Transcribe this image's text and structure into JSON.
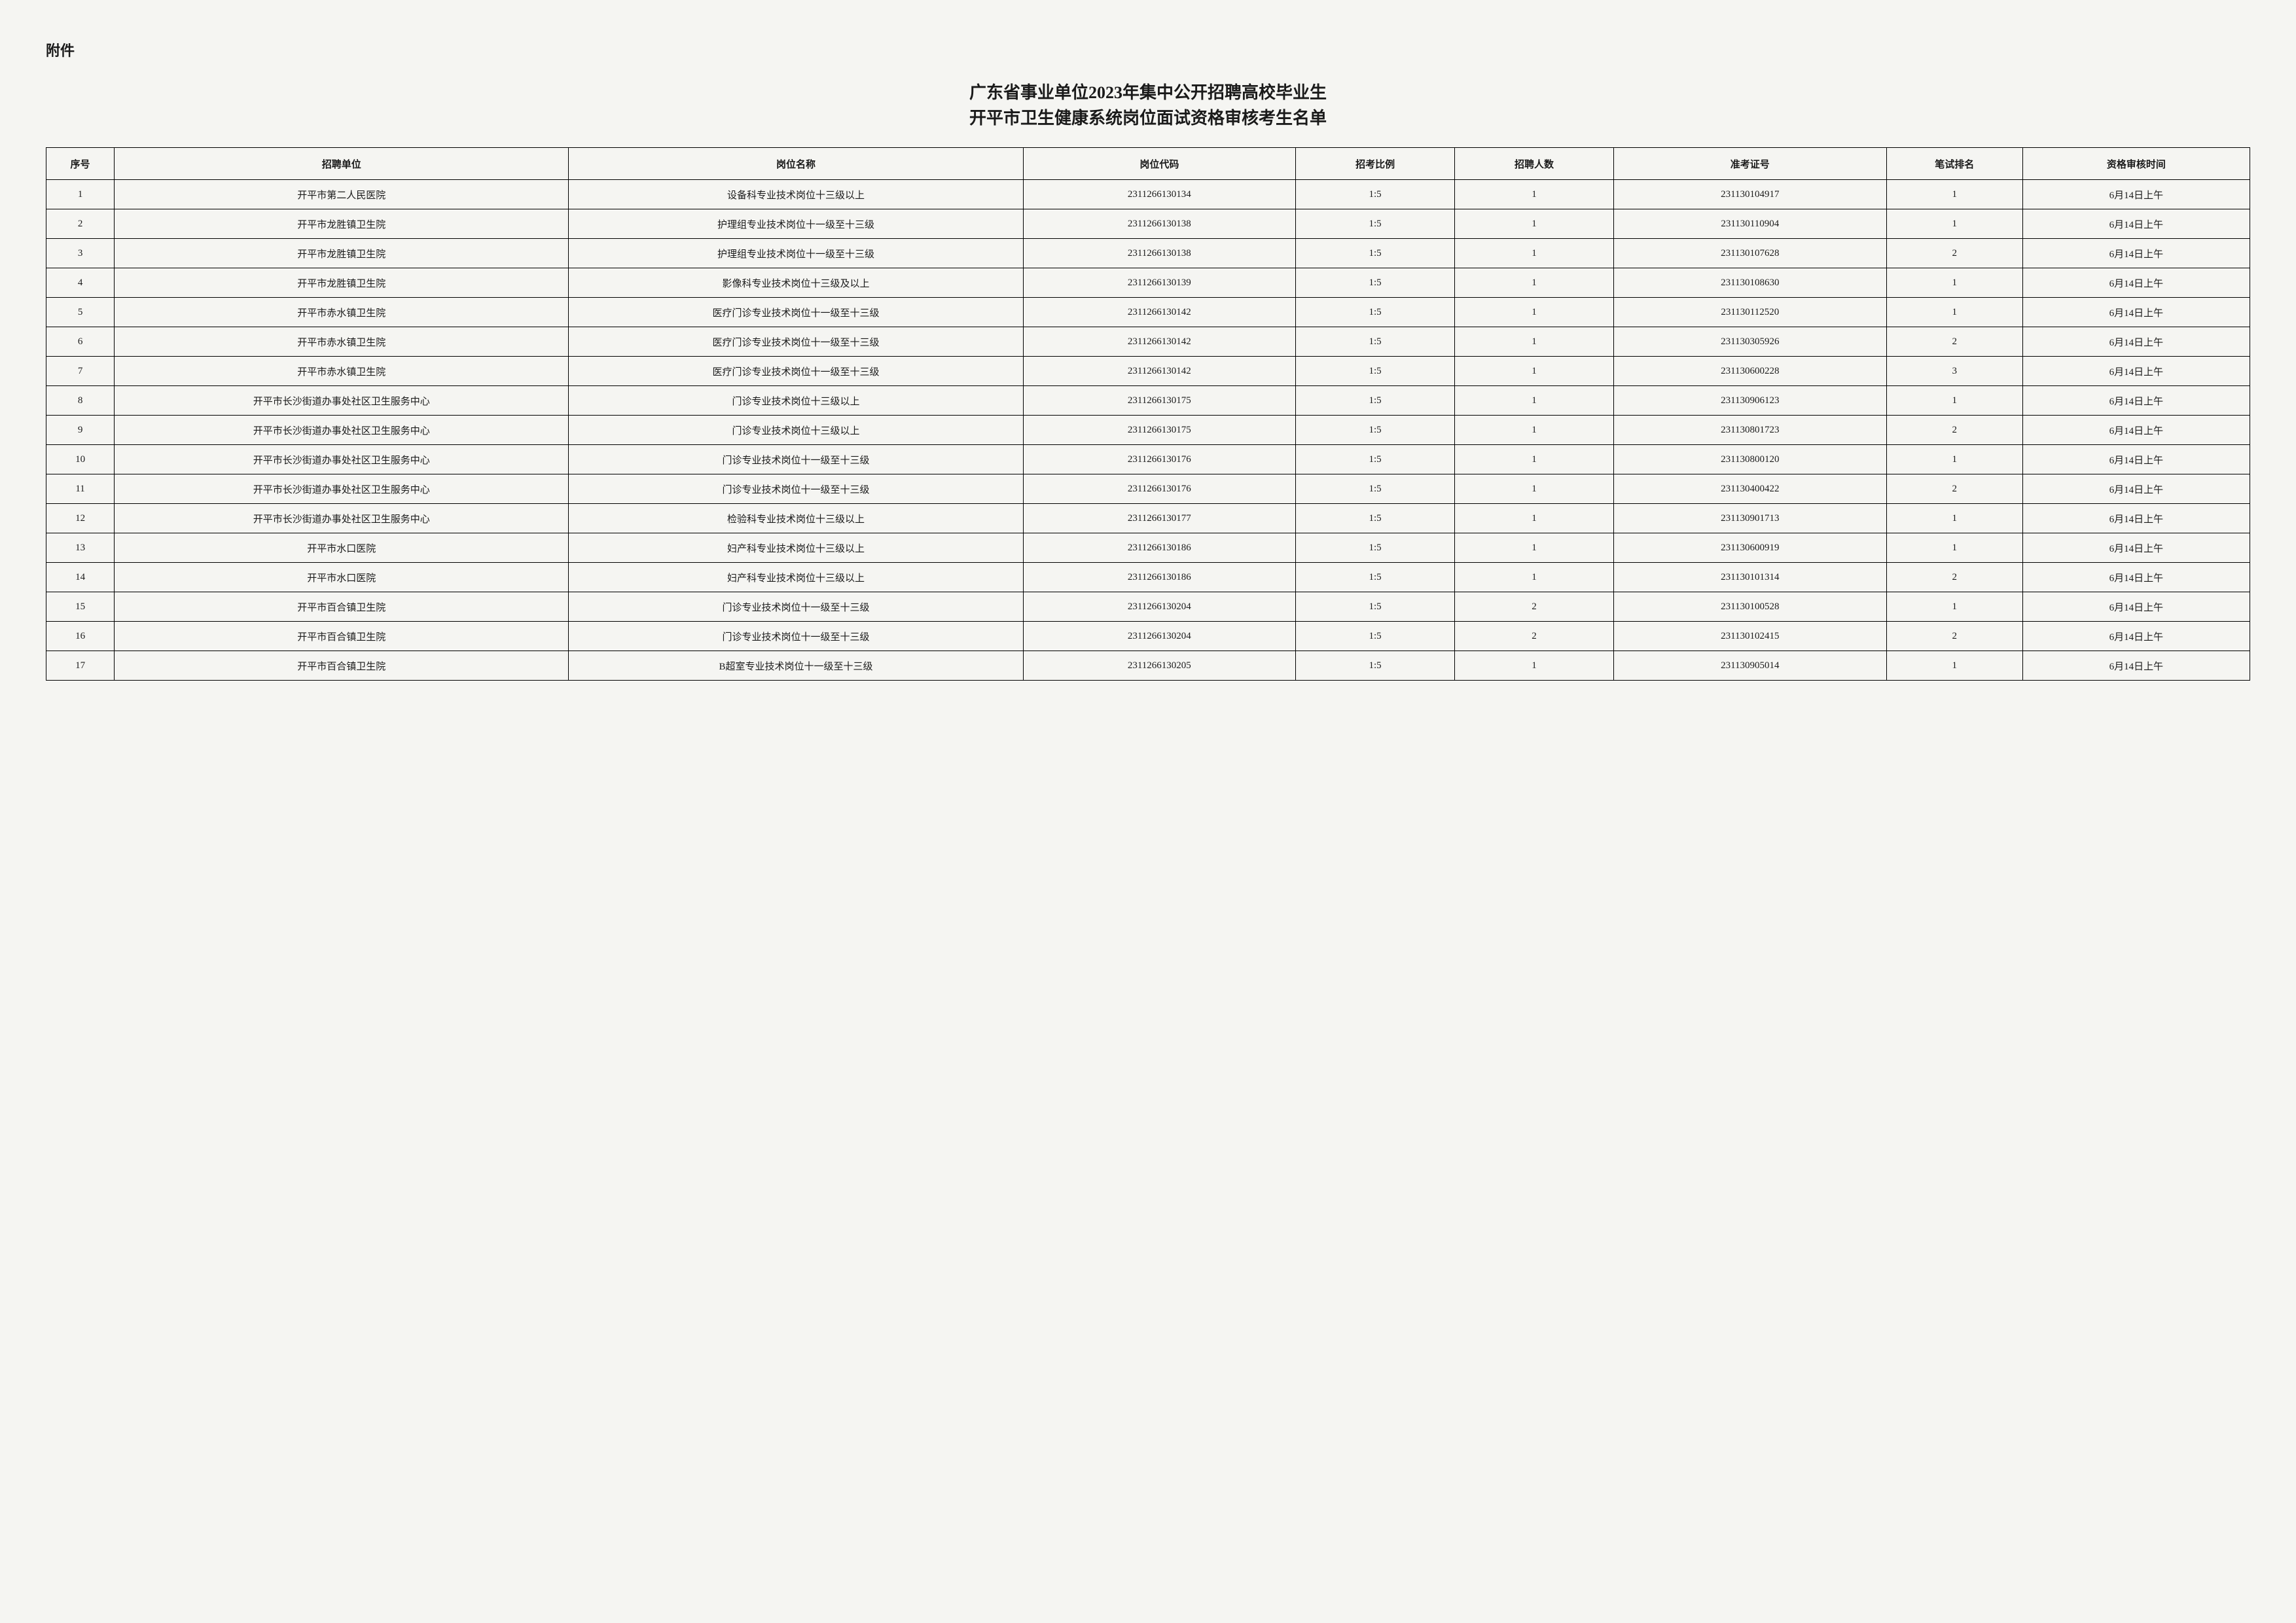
{
  "attachment_label": "附件",
  "title_line1": "广东省事业单位2023年集中公开招聘高校毕业生",
  "title_line2": "开平市卫生健康系统岗位面试资格审核考生名单",
  "columns": {
    "seq": "序号",
    "unit": "招聘单位",
    "position": "岗位名称",
    "code": "岗位代码",
    "ratio": "招考比例",
    "count": "招聘人数",
    "ticket": "准考证号",
    "rank": "笔试排名",
    "time": "资格审核时间"
  },
  "rows": [
    {
      "seq": "1",
      "unit": "开平市第二人民医院",
      "position": "设备科专业技术岗位十三级以上",
      "code": "2311266130134",
      "ratio": "1:5",
      "count": "1",
      "ticket": "231130104917",
      "rank": "1",
      "time": "6月14日上午"
    },
    {
      "seq": "2",
      "unit": "开平市龙胜镇卫生院",
      "position": "护理组专业技术岗位十一级至十三级",
      "code": "2311266130138",
      "ratio": "1:5",
      "count": "1",
      "ticket": "231130110904",
      "rank": "1",
      "time": "6月14日上午"
    },
    {
      "seq": "3",
      "unit": "开平市龙胜镇卫生院",
      "position": "护理组专业技术岗位十一级至十三级",
      "code": "2311266130138",
      "ratio": "1:5",
      "count": "1",
      "ticket": "231130107628",
      "rank": "2",
      "time": "6月14日上午"
    },
    {
      "seq": "4",
      "unit": "开平市龙胜镇卫生院",
      "position": "影像科专业技术岗位十三级及以上",
      "code": "2311266130139",
      "ratio": "1:5",
      "count": "1",
      "ticket": "231130108630",
      "rank": "1",
      "time": "6月14日上午"
    },
    {
      "seq": "5",
      "unit": "开平市赤水镇卫生院",
      "position": "医疗门诊专业技术岗位十一级至十三级",
      "code": "2311266130142",
      "ratio": "1:5",
      "count": "1",
      "ticket": "231130112520",
      "rank": "1",
      "time": "6月14日上午"
    },
    {
      "seq": "6",
      "unit": "开平市赤水镇卫生院",
      "position": "医疗门诊专业技术岗位十一级至十三级",
      "code": "2311266130142",
      "ratio": "1:5",
      "count": "1",
      "ticket": "231130305926",
      "rank": "2",
      "time": "6月14日上午"
    },
    {
      "seq": "7",
      "unit": "开平市赤水镇卫生院",
      "position": "医疗门诊专业技术岗位十一级至十三级",
      "code": "2311266130142",
      "ratio": "1:5",
      "count": "1",
      "ticket": "231130600228",
      "rank": "3",
      "time": "6月14日上午"
    },
    {
      "seq": "8",
      "unit": "开平市长沙街道办事处社区卫生服务中心",
      "position": "门诊专业技术岗位十三级以上",
      "code": "2311266130175",
      "ratio": "1:5",
      "count": "1",
      "ticket": "231130906123",
      "rank": "1",
      "time": "6月14日上午"
    },
    {
      "seq": "9",
      "unit": "开平市长沙街道办事处社区卫生服务中心",
      "position": "门诊专业技术岗位十三级以上",
      "code": "2311266130175",
      "ratio": "1:5",
      "count": "1",
      "ticket": "231130801723",
      "rank": "2",
      "time": "6月14日上午"
    },
    {
      "seq": "10",
      "unit": "开平市长沙街道办事处社区卫生服务中心",
      "position": "门诊专业技术岗位十一级至十三级",
      "code": "2311266130176",
      "ratio": "1:5",
      "count": "1",
      "ticket": "231130800120",
      "rank": "1",
      "time": "6月14日上午"
    },
    {
      "seq": "11",
      "unit": "开平市长沙街道办事处社区卫生服务中心",
      "position": "门诊专业技术岗位十一级至十三级",
      "code": "2311266130176",
      "ratio": "1:5",
      "count": "1",
      "ticket": "231130400422",
      "rank": "2",
      "time": "6月14日上午"
    },
    {
      "seq": "12",
      "unit": "开平市长沙街道办事处社区卫生服务中心",
      "position": "检验科专业技术岗位十三级以上",
      "code": "2311266130177",
      "ratio": "1:5",
      "count": "1",
      "ticket": "231130901713",
      "rank": "1",
      "time": "6月14日上午"
    },
    {
      "seq": "13",
      "unit": "开平市水口医院",
      "position": "妇产科专业技术岗位十三级以上",
      "code": "2311266130186",
      "ratio": "1:5",
      "count": "1",
      "ticket": "231130600919",
      "rank": "1",
      "time": "6月14日上午"
    },
    {
      "seq": "14",
      "unit": "开平市水口医院",
      "position": "妇产科专业技术岗位十三级以上",
      "code": "2311266130186",
      "ratio": "1:5",
      "count": "1",
      "ticket": "231130101314",
      "rank": "2",
      "time": "6月14日上午"
    },
    {
      "seq": "15",
      "unit": "开平市百合镇卫生院",
      "position": "门诊专业技术岗位十一级至十三级",
      "code": "2311266130204",
      "ratio": "1:5",
      "count": "2",
      "ticket": "231130100528",
      "rank": "1",
      "time": "6月14日上午"
    },
    {
      "seq": "16",
      "unit": "开平市百合镇卫生院",
      "position": "门诊专业技术岗位十一级至十三级",
      "code": "2311266130204",
      "ratio": "1:5",
      "count": "2",
      "ticket": "231130102415",
      "rank": "2",
      "time": "6月14日上午"
    },
    {
      "seq": "17",
      "unit": "开平市百合镇卫生院",
      "position": "B超室专业技术岗位十一级至十三级",
      "code": "2311266130205",
      "ratio": "1:5",
      "count": "1",
      "ticket": "231130905014",
      "rank": "1",
      "time": "6月14日上午"
    }
  ]
}
